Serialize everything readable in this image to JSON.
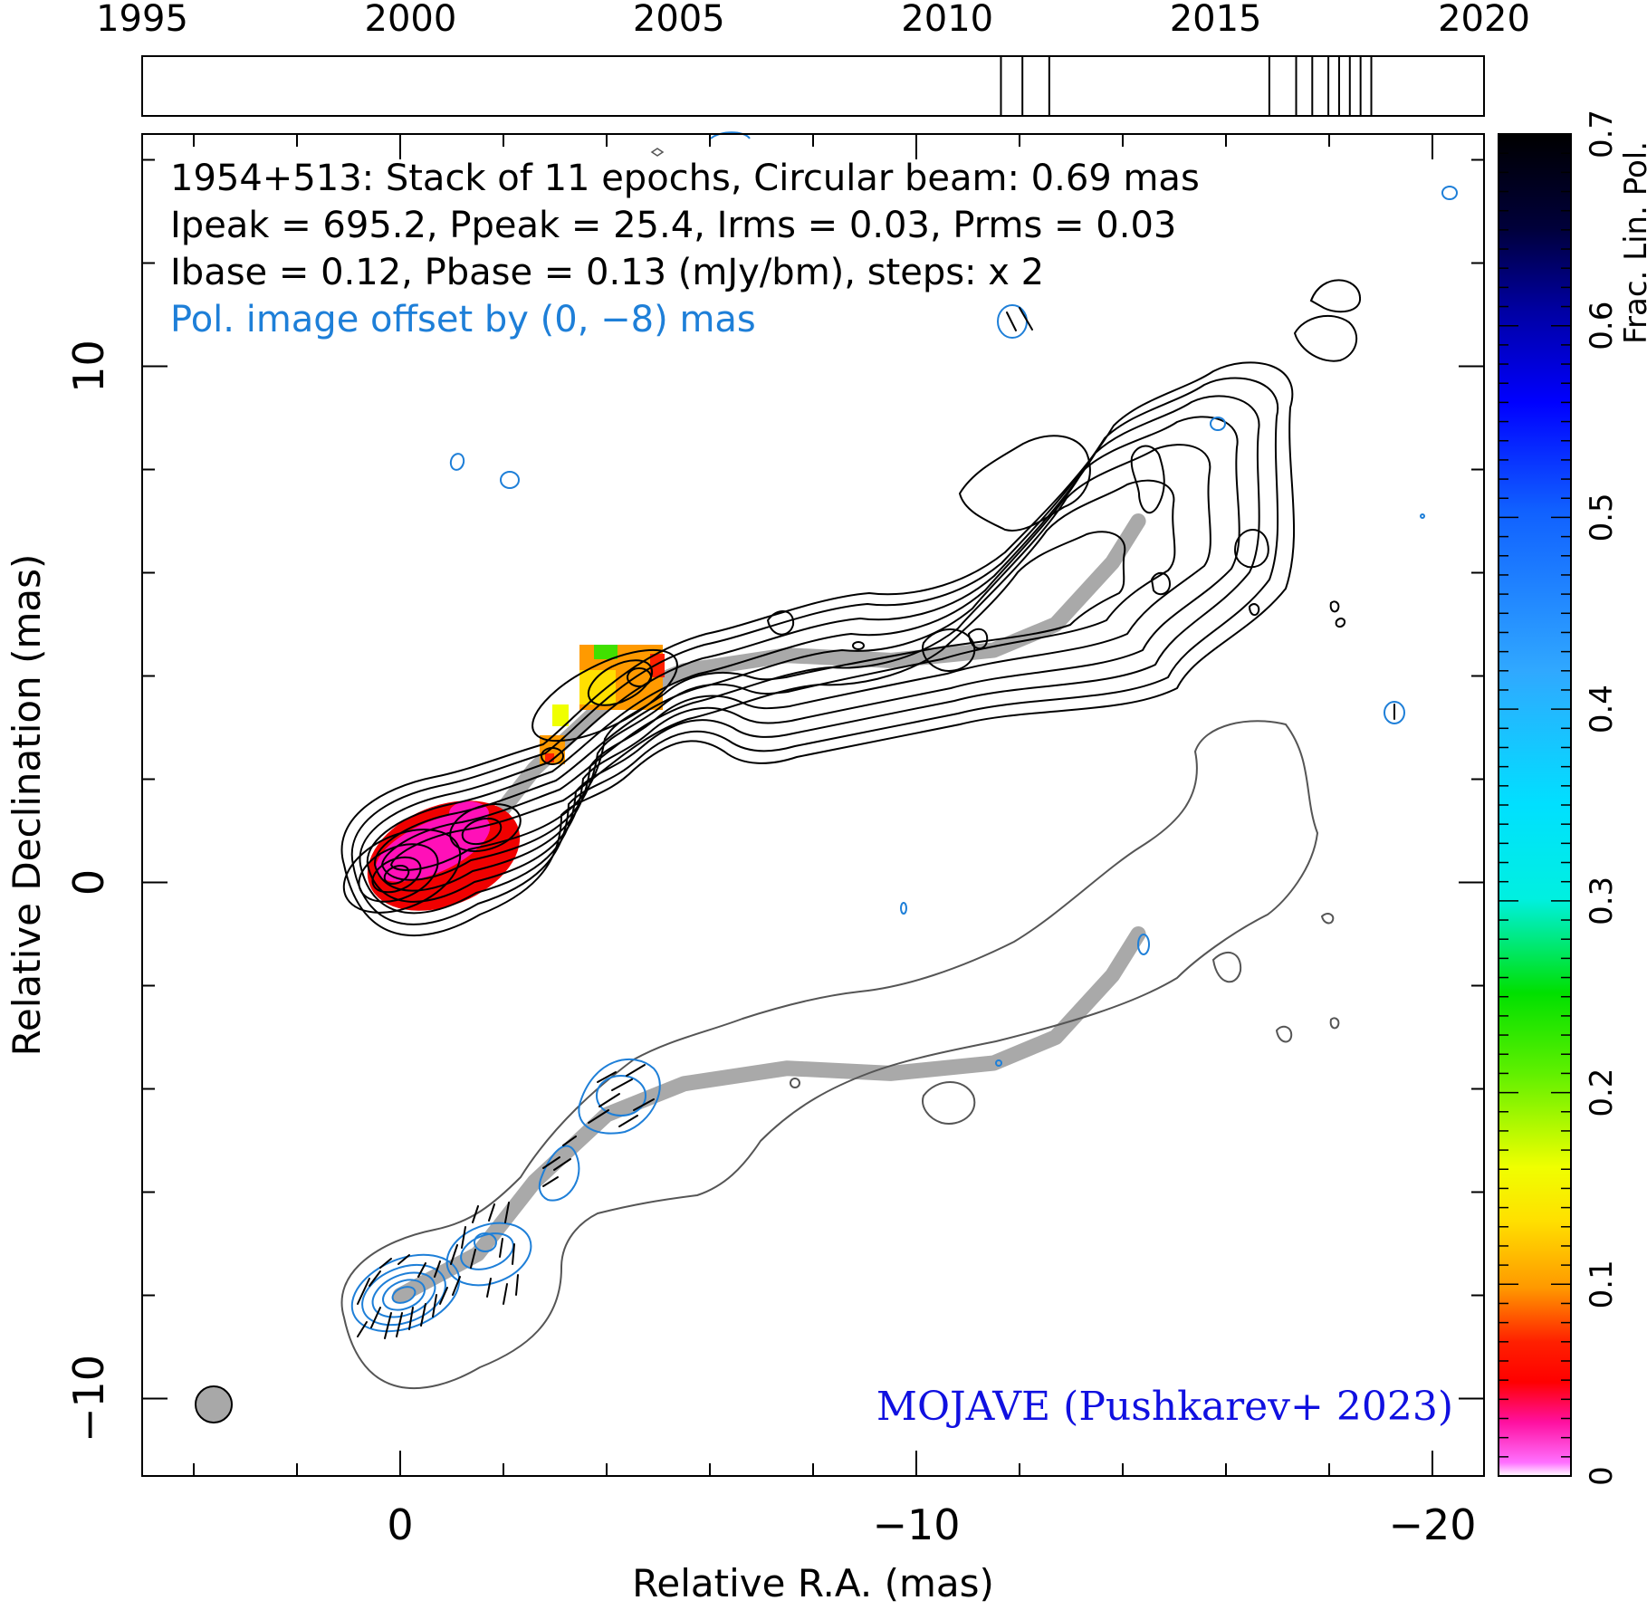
{
  "chart_data": [
    {
      "type": "epoch-timeline",
      "tick_labels": [
        "1995",
        "2000",
        "2005",
        "2010",
        "2015",
        "2020"
      ],
      "xlim": [
        1995,
        2020
      ],
      "epochs": [
        2011.0,
        2011.4,
        2011.9,
        2016.0,
        2016.5,
        2016.8,
        2017.1,
        2017.3,
        2017.5,
        2017.7,
        2017.9
      ]
    },
    {
      "type": "contour",
      "source": "1954+513",
      "annotations": [
        "1954+513: Stack of 11 epochs, Circular beam: 0.69 mas",
        "Ipeak = 695.2, Ppeak = 25.4, Irms = 0.03, Prms = 0.03",
        "Ibase = 0.12, Pbase = 0.13 (mJy/bm), steps: x 2",
        "Pol. image offset by (0, −8) mas"
      ],
      "credit": "MOJAVE (Pushkarev+ 2023)",
      "xlabel": "Relative R.A. (mas)",
      "ylabel": "Relative Declination (mas)",
      "xlim": [
        5,
        -21
      ],
      "ylim": [
        -11.5,
        14.5
      ],
      "x_ticks": [
        0,
        -10,
        -20
      ],
      "x_tick_labels": [
        "0",
        "−10",
        "−20"
      ],
      "y_ticks": [
        10,
        0,
        -10
      ],
      "y_tick_labels": [
        "10",
        "0",
        "−10"
      ],
      "beam_diameter_mas": 0.69,
      "beam_center": [
        4,
        -10
      ],
      "pol_offset_mas": [
        0,
        -8
      ],
      "ridge_line": [
        [
          0,
          0
        ],
        [
          -1.5,
          0.8
        ],
        [
          -2.6,
          2.2
        ],
        [
          -4,
          3.5
        ],
        [
          -5.5,
          4.1
        ],
        [
          -7.5,
          4.4
        ],
        [
          -9.5,
          4.3
        ],
        [
          -11.5,
          4.5
        ],
        [
          -12.7,
          5.0
        ],
        [
          -13.8,
          6.2
        ],
        [
          -14.3,
          7.0
        ]
      ],
      "colorbar": {
        "label": "Frac. Lin. Pol.",
        "ticks": [
          0,
          0.1,
          0.2,
          0.3,
          0.4,
          0.5,
          0.6,
          0.7
        ],
        "tick_labels": [
          "0",
          "0.1",
          "0.2",
          "0.3",
          "0.4",
          "0.5",
          "0.6",
          "0.7"
        ],
        "range": [
          0,
          0.7
        ]
      },
      "colors": {
        "total_intensity_contours": "#000000",
        "offset_total_contours": "#555555",
        "pol_contours": "#1e7fd8",
        "ridge": "#a9a9a9",
        "credit": "#1010e0",
        "note": "#1e7fd8"
      }
    }
  ]
}
